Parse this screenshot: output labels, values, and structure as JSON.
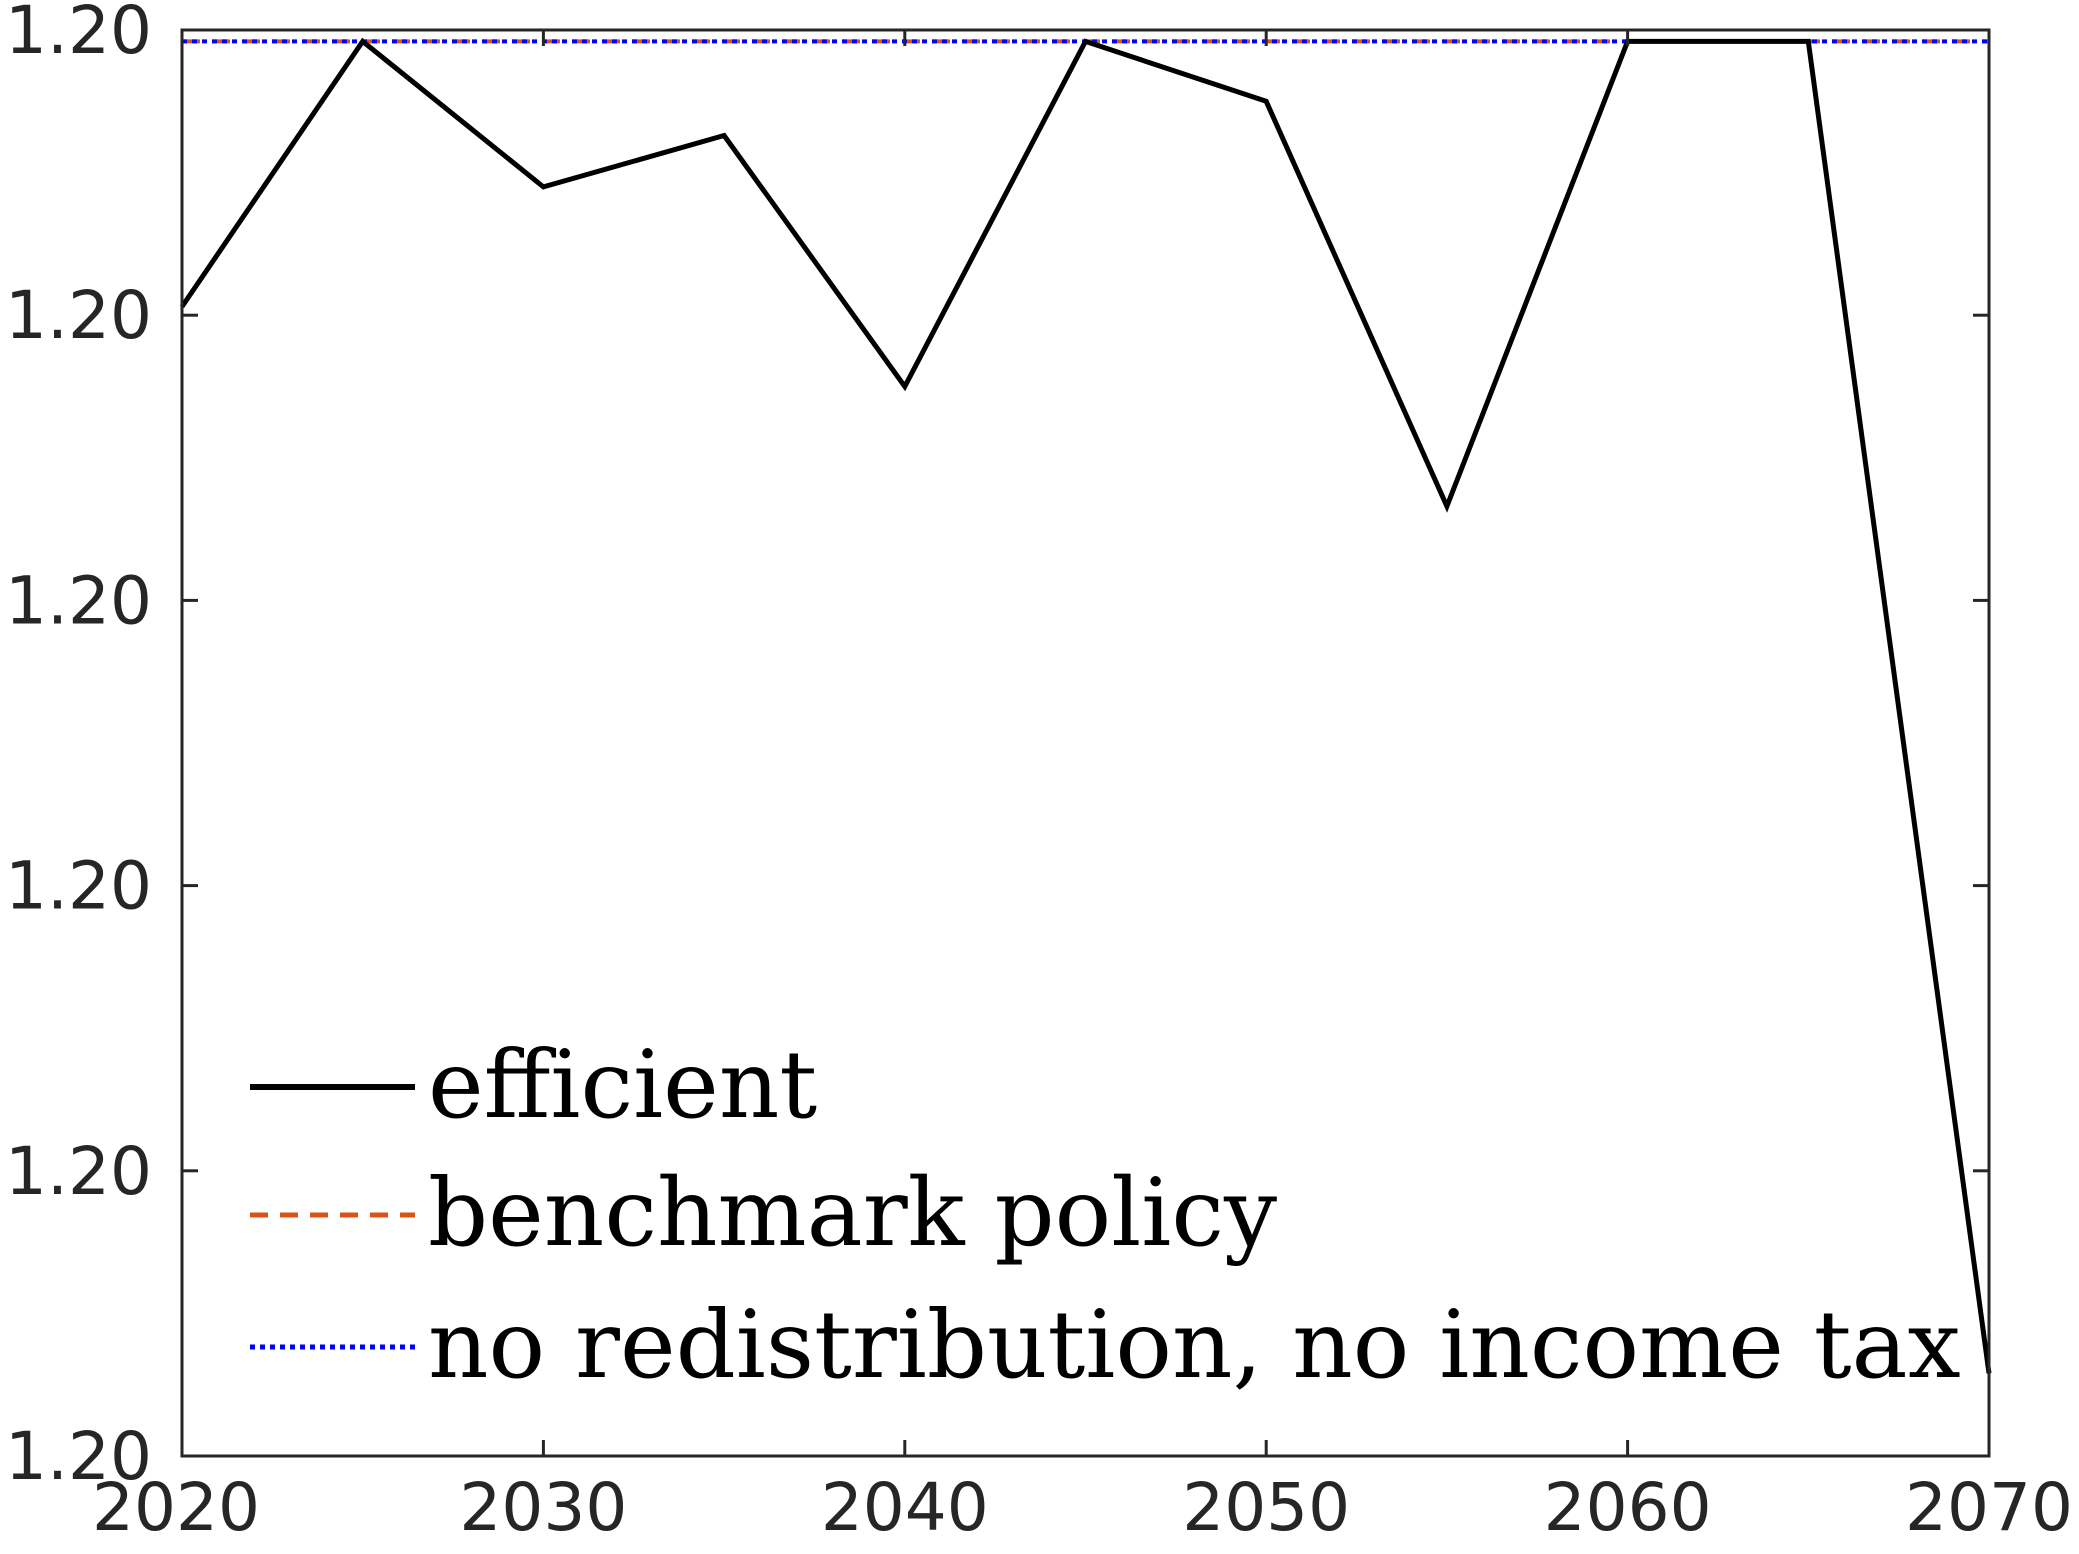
{
  "chart_data": {
    "type": "line",
    "title": "",
    "xlabel": "",
    "ylabel": "",
    "xlim": [
      2020,
      2070
    ],
    "ylim": [
      0,
      5
    ],
    "grid": false,
    "legend_placement": "bottom-left",
    "x_ticks": [
      {
        "value": 2020,
        "label": "2020"
      },
      {
        "value": 2030,
        "label": "2030"
      },
      {
        "value": 2040,
        "label": "2040"
      },
      {
        "value": 2050,
        "label": "2050"
      },
      {
        "value": 2060,
        "label": "2060"
      },
      {
        "value": 2070,
        "label": "2070"
      }
    ],
    "y_ticks": [
      {
        "value": 0,
        "label": "1.20"
      },
      {
        "value": 1,
        "label": "1.20"
      },
      {
        "value": 2,
        "label": "1.20"
      },
      {
        "value": 3,
        "label": "1.20"
      },
      {
        "value": 4,
        "label": "1.20"
      },
      {
        "value": 5,
        "label": "1.20"
      }
    ],
    "x": [
      2020,
      2025,
      2030,
      2035,
      2040,
      2045,
      2050,
      2055,
      2060,
      2065,
      2070
    ],
    "series": [
      {
        "name": "efficient",
        "color": "#000000",
        "style": "solid",
        "values": [
          4.03,
          4.96,
          4.45,
          4.63,
          3.75,
          4.96,
          4.75,
          3.33,
          4.96,
          4.96,
          0.29
        ]
      },
      {
        "name": "benchmark policy",
        "color": "#D95319",
        "style": "dashed",
        "values": [
          4.96,
          4.96,
          4.96,
          4.96,
          4.96,
          4.96,
          4.96,
          4.96,
          4.96,
          4.96,
          4.96
        ]
      },
      {
        "name": "no redistribution, no income tax",
        "color": "#0000FF",
        "style": "dotted",
        "values": [
          4.96,
          4.96,
          4.96,
          4.96,
          4.96,
          4.96,
          4.96,
          4.96,
          4.96,
          4.96,
          4.96
        ]
      }
    ]
  }
}
